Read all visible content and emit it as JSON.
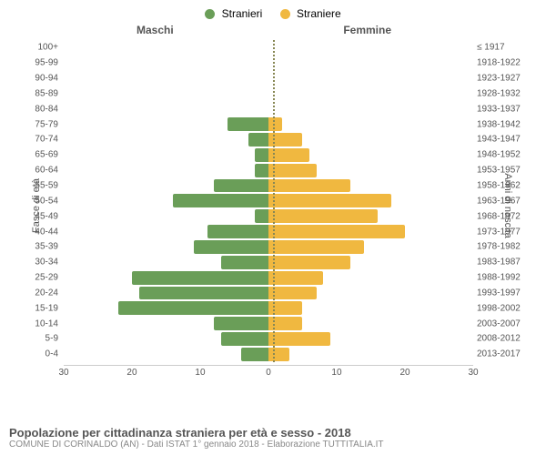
{
  "legend": {
    "male": {
      "label": "Stranieri",
      "color": "#6a9e58"
    },
    "female": {
      "label": "Straniere",
      "color": "#f0b840"
    }
  },
  "columns": {
    "left": "Maschi",
    "right": "Femmine"
  },
  "axis_labels": {
    "left": "Fasce di età",
    "right": "Anni di nascita"
  },
  "x_axis": {
    "max": 30,
    "ticks_left": [
      30,
      20,
      10,
      0
    ],
    "ticks_right": [
      0,
      10,
      20,
      30
    ]
  },
  "rows": [
    {
      "age": "100+",
      "birth": "≤ 1917",
      "m": 0,
      "f": 0
    },
    {
      "age": "95-99",
      "birth": "1918-1922",
      "m": 0,
      "f": 0
    },
    {
      "age": "90-94",
      "birth": "1923-1927",
      "m": 0,
      "f": 0
    },
    {
      "age": "85-89",
      "birth": "1928-1932",
      "m": 0,
      "f": 0
    },
    {
      "age": "80-84",
      "birth": "1933-1937",
      "m": 0,
      "f": 0
    },
    {
      "age": "75-79",
      "birth": "1938-1942",
      "m": 6,
      "f": 2
    },
    {
      "age": "70-74",
      "birth": "1943-1947",
      "m": 3,
      "f": 5
    },
    {
      "age": "65-69",
      "birth": "1948-1952",
      "m": 2,
      "f": 6
    },
    {
      "age": "60-64",
      "birth": "1953-1957",
      "m": 2,
      "f": 7
    },
    {
      "age": "55-59",
      "birth": "1958-1962",
      "m": 8,
      "f": 12
    },
    {
      "age": "50-54",
      "birth": "1963-1967",
      "m": 14,
      "f": 18
    },
    {
      "age": "45-49",
      "birth": "1968-1972",
      "m": 2,
      "f": 16
    },
    {
      "age": "40-44",
      "birth": "1973-1977",
      "m": 9,
      "f": 20
    },
    {
      "age": "35-39",
      "birth": "1978-1982",
      "m": 11,
      "f": 14
    },
    {
      "age": "30-34",
      "birth": "1983-1987",
      "m": 7,
      "f": 12
    },
    {
      "age": "25-29",
      "birth": "1988-1992",
      "m": 20,
      "f": 8
    },
    {
      "age": "20-24",
      "birth": "1993-1997",
      "m": 19,
      "f": 7
    },
    {
      "age": "15-19",
      "birth": "1998-2002",
      "m": 22,
      "f": 5
    },
    {
      "age": "10-14",
      "birth": "2003-2007",
      "m": 8,
      "f": 5
    },
    {
      "age": "5-9",
      "birth": "2008-2012",
      "m": 7,
      "f": 9
    },
    {
      "age": "0-4",
      "birth": "2013-2017",
      "m": 4,
      "f": 3
    }
  ],
  "footer": {
    "title": "Popolazione per cittadinanza straniera per età e sesso - 2018",
    "subtitle": "COMUNE DI CORINALDO (AN) - Dati ISTAT 1° gennaio 2018 - Elaborazione TUTTITALIA.IT"
  },
  "style": {
    "background": "#ffffff",
    "grid_color": "#cccccc",
    "text_color": "#555555",
    "bar_radius": 2,
    "font_family": "Arial",
    "label_fontsize": 10,
    "title_fontsize": 13
  }
}
